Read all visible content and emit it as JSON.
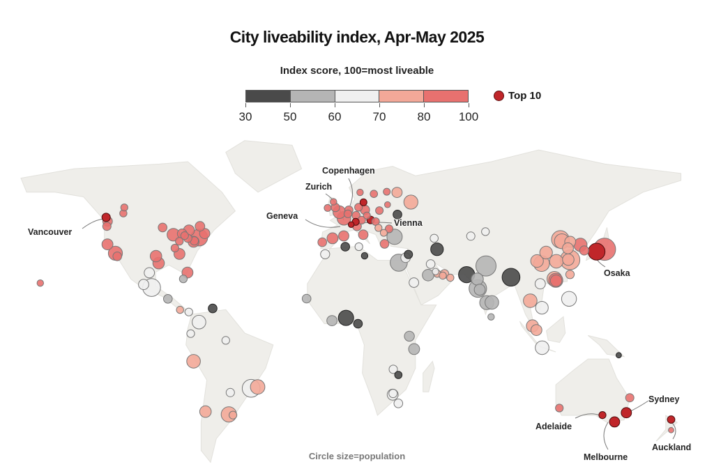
{
  "title": "City liveability index, Apr-May 2025",
  "legend": {
    "title": "Index score, 100=most liveable",
    "bins": [
      {
        "min": 30,
        "max": 50,
        "color": "#4a4a4a"
      },
      {
        "min": 50,
        "max": 60,
        "color": "#b5b5b5"
      },
      {
        "min": 60,
        "max": 70,
        "color": "#f0f0f0"
      },
      {
        "min": 70,
        "max": 80,
        "color": "#f3a898"
      },
      {
        "min": 80,
        "max": 100,
        "color": "#e8716f"
      }
    ],
    "ticks": [
      "30",
      "50",
      "60",
      "70",
      "80",
      "100"
    ],
    "top10_label": "Top 10",
    "top10_color": "#c0262a"
  },
  "footer": "Circle size=population",
  "labels": {
    "vancouver": "Vancouver",
    "copenhagen": "Copenhagen",
    "zurich": "Zurich",
    "geneva": "Geneva",
    "vienna": "Vienna",
    "osaka": "Osaka",
    "sydney": "Sydney",
    "adelaide": "Adelaide",
    "melbourne": "Melbourne",
    "auckland": "Auckland"
  },
  "chart_data": {
    "type": "scatter",
    "encoding": "circles on world map; fields = [latitude, longitude, index score, population (millions), top10]",
    "land_color": "#efeeea",
    "cities": [
      [
        49.3,
        -123.1,
        97,
        2.6,
        true
      ],
      [
        47.6,
        -122.3,
        85,
        4,
        false
      ],
      [
        45.5,
        -122.7,
        85,
        2.5,
        false
      ],
      [
        37.8,
        -122.4,
        85,
        6,
        false
      ],
      [
        34.0,
        -118.2,
        82,
        12,
        false
      ],
      [
        32.7,
        -117.2,
        85,
        3,
        false
      ],
      [
        51.0,
        -114.0,
        92,
        1.5,
        false
      ],
      [
        53.5,
        -113.5,
        88,
        1.4,
        false
      ],
      [
        43.7,
        -79.4,
        90,
        6,
        false
      ],
      [
        45.5,
        -73.6,
        88,
        4,
        false
      ],
      [
        41.9,
        -87.6,
        85,
        9,
        false
      ],
      [
        42.3,
        -83.0,
        80,
        4,
        false
      ],
      [
        45.0,
        -93.3,
        88,
        3,
        false
      ],
      [
        40.4,
        -80.0,
        88,
        2.4,
        false
      ],
      [
        41.5,
        -81.7,
        82,
        2,
        false
      ],
      [
        40.7,
        -74.0,
        85,
        19,
        false
      ],
      [
        42.4,
        -71.1,
        88,
        5,
        false
      ],
      [
        38.9,
        -77.0,
        85,
        6,
        false
      ],
      [
        39.3,
        -76.6,
        82,
        2.5,
        false
      ],
      [
        33.7,
        -84.4,
        85,
        6,
        false
      ],
      [
        25.8,
        -80.2,
        85,
        6,
        false
      ],
      [
        29.8,
        -95.4,
        82,
        7,
        false
      ],
      [
        32.8,
        -96.8,
        82,
        7,
        false
      ],
      [
        21.3,
        -157.8,
        88,
        1,
        false
      ],
      [
        36.2,
        -86.8,
        82,
        2,
        false
      ],
      [
        39.1,
        -84.5,
        85,
        2,
        false
      ],
      [
        25.7,
        -100.3,
        62,
        5,
        false
      ],
      [
        19.4,
        -99.1,
        62,
        22,
        false
      ],
      [
        20.7,
        -103.3,
        68,
        5,
        false
      ],
      [
        9.0,
        -79.5,
        62,
        2,
        false
      ],
      [
        9.9,
        -84.1,
        72,
        1.5,
        false
      ],
      [
        14.6,
        -90.5,
        55,
        3,
        false
      ],
      [
        23.1,
        -82.4,
        55,
        2,
        false
      ],
      [
        10.5,
        -66.9,
        35,
        3,
        false
      ],
      [
        4.7,
        -74.1,
        63,
        11,
        false
      ],
      [
        -0.2,
        -78.5,
        62,
        2,
        false
      ],
      [
        -12.0,
        -77.0,
        72,
        11,
        false
      ],
      [
        -33.4,
        -70.7,
        76,
        7,
        false
      ],
      [
        -34.6,
        -58.4,
        78,
        15,
        false
      ],
      [
        -34.9,
        -56.2,
        78,
        2,
        false
      ],
      [
        -23.5,
        -46.6,
        68,
        22,
        false
      ],
      [
        -22.9,
        -43.2,
        75,
        13,
        false
      ],
      [
        -3.1,
        -60.0,
        68,
        2,
        false
      ],
      [
        -25.3,
        -57.6,
        68,
        2.5,
        false
      ],
      [
        51.5,
        -0.1,
        88,
        9,
        false
      ],
      [
        53.5,
        -2.2,
        90,
        2.7,
        false
      ],
      [
        55.9,
        -3.2,
        88,
        1,
        false
      ],
      [
        53.3,
        -6.3,
        88,
        1.3,
        false
      ],
      [
        48.9,
        2.3,
        90,
        11,
        false
      ],
      [
        52.4,
        4.9,
        92,
        2.4,
        false
      ],
      [
        50.8,
        4.4,
        90,
        2,
        false
      ],
      [
        50.1,
        8.7,
        95,
        2.3,
        false
      ],
      [
        53.6,
        10.0,
        92,
        2,
        false
      ],
      [
        52.5,
        13.4,
        93,
        3.6,
        false
      ],
      [
        48.1,
        11.6,
        94,
        2,
        false
      ],
      [
        47.4,
        8.5,
        97,
        1.4,
        true
      ],
      [
        46.2,
        6.1,
        96,
        0.6,
        true
      ],
      [
        48.2,
        16.4,
        98,
        1.9,
        true
      ],
      [
        55.7,
        12.6,
        98,
        1.3,
        true
      ],
      [
        59.9,
        10.8,
        92,
        1,
        false
      ],
      [
        59.3,
        18.1,
        92,
        1.6,
        false
      ],
      [
        60.2,
        24.9,
        94,
        1.3,
        false
      ],
      [
        50.1,
        14.4,
        90,
        1.3,
        false
      ],
      [
        47.5,
        19.0,
        85,
        1.8,
        false
      ],
      [
        52.2,
        21.0,
        85,
        1.8,
        false
      ],
      [
        45.5,
        9.2,
        90,
        3,
        false
      ],
      [
        41.9,
        12.5,
        85,
        4,
        false
      ],
      [
        40.4,
        -3.7,
        90,
        6,
        false
      ],
      [
        41.4,
        2.2,
        90,
        5,
        false
      ],
      [
        38.7,
        -9.1,
        88,
        3,
        false
      ],
      [
        38.0,
        23.7,
        80,
        3,
        false
      ],
      [
        41.0,
        29.0,
        57,
        15,
        false
      ],
      [
        55.8,
        37.6,
        72,
        12,
        false
      ],
      [
        59.9,
        30.3,
        78,
        5,
        false
      ],
      [
        50.5,
        30.5,
        42,
        3,
        false
      ],
      [
        44.4,
        26.1,
        80,
        2,
        false
      ],
      [
        44.8,
        20.5,
        75,
        1.4,
        false
      ],
      [
        42.7,
        23.3,
        78,
        1.3,
        false
      ],
      [
        54.7,
        25.3,
        85,
        0.7,
        false
      ],
      [
        36.8,
        3.0,
        40,
        3,
        false
      ],
      [
        36.8,
        10.2,
        62,
        2,
        false
      ],
      [
        33.6,
        -7.6,
        62,
        3.5,
        false
      ],
      [
        32.1,
        34.8,
        68,
        4,
        false
      ],
      [
        35.7,
        51.4,
        45,
        9,
        false
      ],
      [
        33.5,
        36.3,
        30,
        2.5,
        false
      ],
      [
        40.4,
        49.9,
        65,
        2.3,
        false
      ],
      [
        41.3,
        69.2,
        65,
        2.5,
        false
      ],
      [
        43.2,
        76.9,
        65,
        2,
        false
      ],
      [
        32.9,
        13.2,
        35,
        1,
        false
      ],
      [
        24.7,
        46.7,
        57,
        7,
        false
      ],
      [
        21.5,
        39.2,
        62,
        4,
        false
      ],
      [
        30.0,
        31.2,
        58,
        20,
        false
      ],
      [
        29.4,
        48.0,
        65,
        3,
        false
      ],
      [
        26.2,
        50.6,
        68,
        1,
        false
      ],
      [
        25.3,
        51.5,
        75,
        1.5,
        false
      ],
      [
        25.2,
        55.3,
        75,
        3,
        false
      ],
      [
        24.5,
        54.4,
        75,
        1.5,
        false
      ],
      [
        23.6,
        58.4,
        72,
        1.5,
        false
      ],
      [
        14.7,
        -17.4,
        55,
        3,
        false
      ],
      [
        5.3,
        -4.0,
        55,
        5,
        false
      ],
      [
        6.5,
        3.4,
        35,
        15,
        false
      ],
      [
        4.0,
        9.7,
        40,
        3,
        false
      ],
      [
        -1.3,
        36.8,
        55,
        4.5,
        false
      ],
      [
        -6.8,
        39.3,
        55,
        6,
        false
      ],
      [
        -17.8,
        31.0,
        45,
        1.6,
        false
      ],
      [
        -15.4,
        28.3,
        60,
        2.5,
        false
      ],
      [
        -26.2,
        28.0,
        68,
        6,
        false
      ],
      [
        -25.7,
        28.2,
        66,
        2.5,
        false
      ],
      [
        -29.9,
        31.0,
        66,
        3,
        false
      ],
      [
        24.9,
        67.0,
        40,
        17,
        false
      ],
      [
        23.8,
        90.4,
        35,
        22,
        false
      ],
      [
        28.6,
        77.2,
        55,
        30,
        false
      ],
      [
        19.0,
        72.9,
        57,
        21,
        false
      ],
      [
        13.0,
        77.6,
        55,
        12,
        false
      ],
      [
        13.1,
        80.3,
        57,
        11,
        false
      ],
      [
        18.5,
        73.9,
        55,
        6,
        false
      ],
      [
        23.0,
        72.6,
        55,
        8,
        false
      ],
      [
        6.9,
        79.9,
        58,
        1,
        false
      ],
      [
        13.8,
        100.5,
        70,
        11,
        false
      ],
      [
        21.0,
        105.8,
        62,
        5,
        false
      ],
      [
        10.8,
        106.7,
        65,
        9,
        false
      ],
      [
        3.1,
        101.7,
        75,
        8,
        false
      ],
      [
        1.3,
        103.8,
        78,
        6,
        false
      ],
      [
        -6.2,
        106.8,
        62,
        11,
        false
      ],
      [
        14.6,
        121.0,
        65,
        14,
        false
      ],
      [
        25.0,
        121.5,
        78,
        2.7,
        false
      ],
      [
        22.3,
        114.2,
        80,
        7,
        false
      ],
      [
        22.5,
        114.0,
        80,
        12,
        false
      ],
      [
        23.1,
        113.3,
        78,
        14,
        false
      ],
      [
        31.2,
        121.5,
        76,
        28,
        false
      ],
      [
        39.9,
        116.4,
        75,
        21,
        false
      ],
      [
        39.1,
        117.2,
        73,
        14,
        false
      ],
      [
        38.9,
        121.6,
        78,
        6,
        false
      ],
      [
        36.1,
        120.4,
        78,
        6,
        false
      ],
      [
        31.3,
        120.6,
        78,
        7,
        false
      ],
      [
        30.6,
        114.3,
        72,
        11,
        false
      ],
      [
        30.7,
        104.1,
        72,
        9,
        false
      ],
      [
        29.6,
        106.5,
        72,
        16,
        false
      ],
      [
        34.3,
        108.9,
        74,
        9,
        false
      ],
      [
        37.6,
        127.0,
        90,
        10,
        false
      ],
      [
        35.2,
        129.0,
        88,
        3.4,
        false
      ],
      [
        35.7,
        139.7,
        93,
        37,
        false
      ],
      [
        34.7,
        135.5,
        97,
        19,
        true
      ],
      [
        -33.9,
        151.2,
        97,
        5,
        true
      ],
      [
        -37.8,
        145.0,
        98,
        5,
        true
      ],
      [
        -34.9,
        138.6,
        96,
        1.4,
        true
      ],
      [
        -27.5,
        153.0,
        95,
        2.5,
        false
      ],
      [
        -31.9,
        115.9,
        95,
        2,
        false
      ],
      [
        -36.8,
        174.8,
        97,
        1.7,
        true
      ],
      [
        -41.3,
        174.8,
        93,
        0.4,
        false
      ],
      [
        -9.4,
        147.2,
        38,
        0.4,
        false
      ]
    ]
  }
}
